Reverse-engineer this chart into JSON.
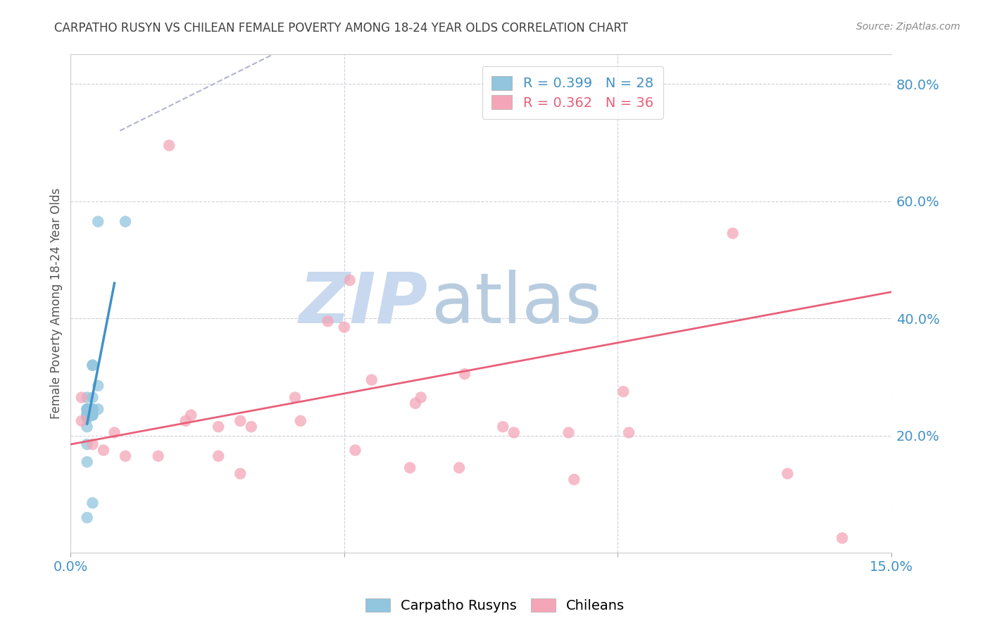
{
  "title": "CARPATHO RUSYN VS CHILEAN FEMALE POVERTY AMONG 18-24 YEAR OLDS CORRELATION CHART",
  "source": "Source: ZipAtlas.com",
  "ylabel": "Female Poverty Among 18-24 Year Olds",
  "xlabel": "",
  "xlim": [
    0.0,
    0.15
  ],
  "ylim": [
    0.0,
    0.85
  ],
  "xticks": [
    0.0,
    0.05,
    0.1,
    0.15
  ],
  "xtick_labels": [
    "0.0%",
    "",
    "",
    "15.0%"
  ],
  "ytick_labels_right": [
    "20.0%",
    "40.0%",
    "60.0%",
    "80.0%"
  ],
  "ytick_values_right": [
    0.2,
    0.4,
    0.6,
    0.8
  ],
  "legend_r1": "R = 0.399",
  "legend_n1": "N = 28",
  "legend_r2": "R = 0.362",
  "legend_n2": "N = 36",
  "blue_color": "#92c5de",
  "pink_color": "#f4a6b8",
  "blue_line_color": "#4292c6",
  "pink_line_color": "#e8607a",
  "dashed_line_color": "#aaaacc",
  "watermark_zip": "ZIP",
  "watermark_atlas": "atlas",
  "watermark_zip_color": "#c8d8ee",
  "watermark_atlas_color": "#b8cce0",
  "title_color": "#404040",
  "axis_label_color": "#555555",
  "tick_label_color": "#4292c6",
  "grid_color": "#d0d0d8",
  "background_color": "#ffffff",
  "carpatho_x": [
    0.005,
    0.01,
    0.005,
    0.003,
    0.003,
    0.004,
    0.004,
    0.003,
    0.005,
    0.004,
    0.003,
    0.003,
    0.003,
    0.004,
    0.003,
    0.003,
    0.003,
    0.004,
    0.004,
    0.003,
    0.004,
    0.003,
    0.003,
    0.004,
    0.004,
    0.003,
    0.004,
    0.003
  ],
  "carpatho_y": [
    0.565,
    0.565,
    0.285,
    0.215,
    0.245,
    0.32,
    0.245,
    0.245,
    0.245,
    0.265,
    0.23,
    0.23,
    0.235,
    0.235,
    0.265,
    0.245,
    0.235,
    0.32,
    0.245,
    0.24,
    0.245,
    0.185,
    0.155,
    0.235,
    0.235,
    0.06,
    0.085,
    0.235
  ],
  "chilean_x": [
    0.018,
    0.033,
    0.047,
    0.05,
    0.055,
    0.063,
    0.064,
    0.079,
    0.091,
    0.101,
    0.022,
    0.027,
    0.027,
    0.031,
    0.031,
    0.041,
    0.042,
    0.051,
    0.052,
    0.062,
    0.071,
    0.072,
    0.081,
    0.092,
    0.102,
    0.121,
    0.131,
    0.002,
    0.004,
    0.006,
    0.008,
    0.01,
    0.016,
    0.021,
    0.141,
    0.002
  ],
  "chilean_y": [
    0.695,
    0.215,
    0.395,
    0.385,
    0.295,
    0.255,
    0.265,
    0.215,
    0.205,
    0.275,
    0.235,
    0.215,
    0.165,
    0.225,
    0.135,
    0.265,
    0.225,
    0.465,
    0.175,
    0.145,
    0.145,
    0.305,
    0.205,
    0.125,
    0.205,
    0.545,
    0.135,
    0.225,
    0.185,
    0.175,
    0.205,
    0.165,
    0.165,
    0.225,
    0.025,
    0.265
  ],
  "blue_trend_x": [
    0.003,
    0.008
  ],
  "blue_trend_y": [
    0.22,
    0.46
  ],
  "pink_trend_x": [
    0.0,
    0.15
  ],
  "pink_trend_y": [
    0.185,
    0.445
  ],
  "dashed_trend_x": [
    0.009,
    0.038
  ],
  "dashed_trend_y": [
    0.72,
    0.855
  ]
}
